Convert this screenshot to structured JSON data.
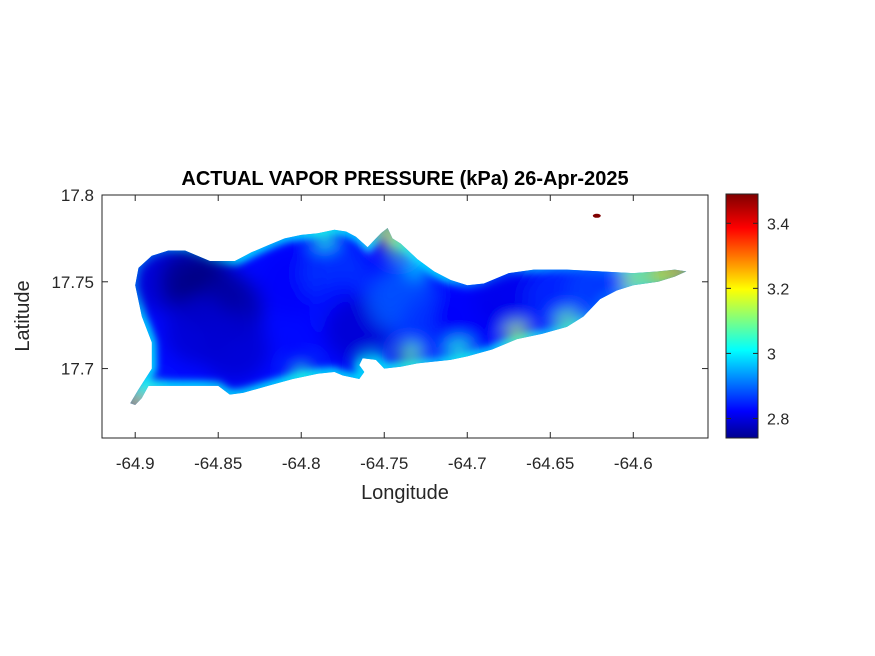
{
  "chart_data": {
    "type": "heatmap",
    "title": "ACTUAL VAPOR PRESSURE (kPa) 26-Apr-2025",
    "xlabel": "Longitude",
    "ylabel": "Latitude",
    "xlim": [
      -64.92,
      -64.555
    ],
    "ylim": [
      17.66,
      17.8
    ],
    "xticks": [
      -64.9,
      -64.85,
      -64.8,
      -64.75,
      -64.7,
      -64.65,
      -64.6
    ],
    "xtick_labels": [
      "-64.9",
      "-64.85",
      "-64.8",
      "-64.75",
      "-64.7",
      "-64.65",
      "-64.6"
    ],
    "yticks": [
      17.7,
      17.75,
      17.8
    ],
    "ytick_labels": [
      "17.7",
      "17.75",
      "17.8"
    ],
    "colorbar": {
      "colormap": "jet",
      "clim": [
        2.74,
        3.49
      ],
      "ticks": [
        2.8,
        3,
        3.2,
        3.4
      ],
      "tick_labels": [
        "2.8",
        "3",
        "3.2",
        "3.4"
      ]
    },
    "colors": {
      "min": "#00008f",
      "low": "#0050ff",
      "mid": "#00ffff",
      "high": "#ffff00",
      "max": "#800000"
    },
    "region_outline": [
      [
        -64.9,
        17.679
      ],
      [
        -64.896,
        17.683
      ],
      [
        -64.892,
        17.69
      ],
      [
        -64.885,
        17.69
      ],
      [
        -64.875,
        17.69
      ],
      [
        -64.862,
        17.69
      ],
      [
        -64.85,
        17.69
      ],
      [
        -64.843,
        17.685
      ],
      [
        -64.835,
        17.686
      ],
      [
        -64.82,
        17.69
      ],
      [
        -64.805,
        17.694
      ],
      [
        -64.79,
        17.697
      ],
      [
        -64.78,
        17.698
      ],
      [
        -64.775,
        17.696
      ],
      [
        -64.765,
        17.694
      ],
      [
        -64.762,
        17.698
      ],
      [
        -64.765,
        17.702
      ],
      [
        -64.763,
        17.706
      ],
      [
        -64.755,
        17.705
      ],
      [
        -64.75,
        17.7
      ],
      [
        -64.74,
        17.701
      ],
      [
        -64.73,
        17.703
      ],
      [
        -64.72,
        17.704
      ],
      [
        -64.71,
        17.705
      ],
      [
        -64.7,
        17.707
      ],
      [
        -64.685,
        17.711
      ],
      [
        -64.67,
        17.717
      ],
      [
        -64.655,
        17.72
      ],
      [
        -64.64,
        17.724
      ],
      [
        -64.63,
        17.73
      ],
      [
        -64.625,
        17.735
      ],
      [
        -64.62,
        17.74
      ],
      [
        -64.61,
        17.745
      ],
      [
        -64.6,
        17.748
      ],
      [
        -64.585,
        17.75
      ],
      [
        -64.575,
        17.753
      ],
      [
        -64.568,
        17.756
      ],
      [
        -64.575,
        17.757
      ],
      [
        -64.585,
        17.756
      ],
      [
        -64.6,
        17.755
      ],
      [
        -64.62,
        17.756
      ],
      [
        -64.64,
        17.757
      ],
      [
        -64.66,
        17.757
      ],
      [
        -64.675,
        17.755
      ],
      [
        -64.69,
        17.749
      ],
      [
        -64.7,
        17.748
      ],
      [
        -64.71,
        17.751
      ],
      [
        -64.72,
        17.756
      ],
      [
        -64.73,
        17.763
      ],
      [
        -64.74,
        17.772
      ],
      [
        -64.745,
        17.775
      ],
      [
        -64.748,
        17.781
      ],
      [
        -64.752,
        17.778
      ],
      [
        -64.755,
        17.775
      ],
      [
        -64.76,
        17.77
      ],
      [
        -64.767,
        17.776
      ],
      [
        -64.773,
        17.779
      ],
      [
        -64.78,
        17.78
      ],
      [
        -64.79,
        17.778
      ],
      [
        -64.8,
        17.777
      ],
      [
        -64.81,
        17.775
      ],
      [
        -64.82,
        17.771
      ],
      [
        -64.83,
        17.767
      ],
      [
        -64.84,
        17.762
      ],
      [
        -64.855,
        17.762
      ],
      [
        -64.87,
        17.768
      ],
      [
        -64.88,
        17.768
      ],
      [
        -64.89,
        17.765
      ],
      [
        -64.898,
        17.758
      ],
      [
        -64.9,
        17.748
      ],
      [
        -64.896,
        17.73
      ],
      [
        -64.89,
        17.715
      ],
      [
        -64.89,
        17.7
      ],
      [
        -64.898,
        17.688
      ],
      [
        -64.903,
        17.68
      ]
    ],
    "cells": [
      {
        "lon": -64.882,
        "lat": 17.751,
        "value": 2.8
      },
      {
        "lon": -64.865,
        "lat": 17.75,
        "value": 2.75
      },
      {
        "lon": -64.855,
        "lat": 17.742,
        "value": 2.74
      },
      {
        "lon": -64.843,
        "lat": 17.735,
        "value": 2.77
      },
      {
        "lon": -64.862,
        "lat": 17.722,
        "value": 2.8
      },
      {
        "lon": -64.84,
        "lat": 17.712,
        "value": 2.8
      },
      {
        "lon": -64.805,
        "lat": 17.75,
        "value": 2.83
      },
      {
        "lon": -64.78,
        "lat": 17.755,
        "value": 2.87
      },
      {
        "lon": -64.775,
        "lat": 17.73,
        "value": 2.84
      },
      {
        "lon": -64.765,
        "lat": 17.722,
        "value": 2.8
      },
      {
        "lon": -64.74,
        "lat": 17.74,
        "value": 2.9
      },
      {
        "lon": -64.72,
        "lat": 17.725,
        "value": 2.87
      },
      {
        "lon": -64.7,
        "lat": 17.73,
        "value": 2.83
      },
      {
        "lon": -64.675,
        "lat": 17.74,
        "value": 2.82
      },
      {
        "lon": -64.645,
        "lat": 17.74,
        "value": 2.86
      },
      {
        "lon": -64.62,
        "lat": 17.746,
        "value": 2.88
      },
      {
        "lon": -64.89,
        "lat": 17.685,
        "value": 3.05
      },
      {
        "lon": -64.9,
        "lat": 17.68,
        "value": 3.35
      },
      {
        "lon": -64.786,
        "lat": 17.776,
        "value": 3.05
      },
      {
        "lon": -64.748,
        "lat": 17.778,
        "value": 3.3
      },
      {
        "lon": -64.742,
        "lat": 17.77,
        "value": 3.1
      },
      {
        "lon": -64.73,
        "lat": 17.76,
        "value": 3.0
      },
      {
        "lon": -64.735,
        "lat": 17.708,
        "value": 3.1
      },
      {
        "lon": -64.705,
        "lat": 17.71,
        "value": 3.05
      },
      {
        "lon": -64.67,
        "lat": 17.72,
        "value": 3.15
      },
      {
        "lon": -64.64,
        "lat": 17.727,
        "value": 3.1
      },
      {
        "lon": -64.6,
        "lat": 17.752,
        "value": 3.15
      },
      {
        "lon": -64.585,
        "lat": 17.754,
        "value": 3.25
      },
      {
        "lon": -64.572,
        "lat": 17.756,
        "value": 3.3
      },
      {
        "lon": -64.8,
        "lat": 17.697,
        "value": 3.05
      },
      {
        "lon": -64.757,
        "lat": 17.701,
        "value": 3.0
      },
      {
        "lon": -64.622,
        "lat": 17.788,
        "value": 3.49
      }
    ]
  }
}
